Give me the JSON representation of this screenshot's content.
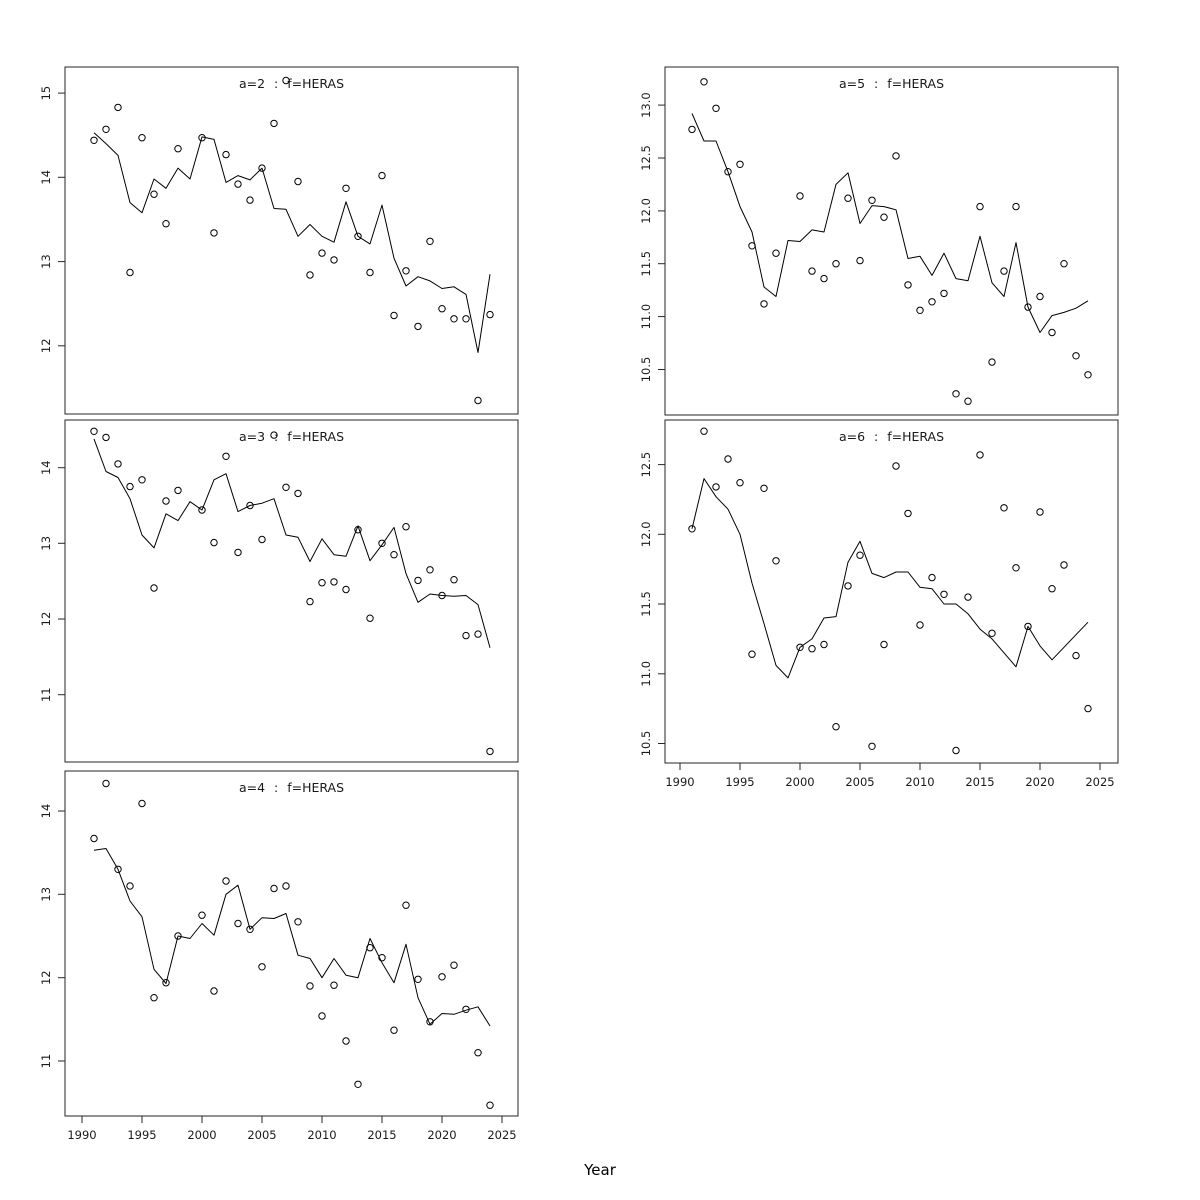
{
  "figure": {
    "xlabel": "Year",
    "background_color": "#ffffff",
    "title_color": "#7f7f7f",
    "data_color": "#000000",
    "axis_color": "#262626"
  },
  "chart_data": {
    "type": "scatter",
    "description": "5-panel lattice of survey index vs year: open-circle observations with fitted line",
    "x": [
      1991,
      1992,
      1993,
      1994,
      1995,
      1996,
      1997,
      1998,
      1999,
      2000,
      2001,
      2002,
      2003,
      2004,
      2005,
      2006,
      2007,
      2008,
      2009,
      2010,
      2011,
      2012,
      2013,
      2014,
      2015,
      2016,
      2017,
      2018,
      2019,
      2020,
      2021,
      2022,
      2023,
      2024
    ],
    "xticks": [
      1990,
      1995,
      2000,
      2005,
      2010,
      2015,
      2020,
      2025
    ],
    "xlabel": "Year",
    "legend": "none",
    "grid": false,
    "panels": [
      {
        "id": "a2",
        "title": "a=2 : f=HERAS",
        "yticks": [
          12,
          13,
          14,
          15
        ],
        "ytick_labels": [
          "12",
          "13",
          "14",
          "15"
        ],
        "ylim": [
          11.19,
          15.31
        ],
        "xlim": [
          1988.583,
          2026.333
        ],
        "show_x_axis": false,
        "scatter": [
          14.44,
          14.57,
          14.83,
          12.87,
          14.47,
          13.8,
          13.45,
          14.34,
          null,
          14.47,
          13.34,
          14.27,
          13.92,
          13.73,
          14.11,
          14.64,
          15.15,
          13.95,
          12.84,
          13.1,
          13.02,
          13.87,
          13.3,
          12.87,
          14.02,
          12.36,
          12.89,
          12.23,
          13.24,
          12.44,
          12.32,
          12.32,
          11.35,
          12.37
        ],
        "line": [
          14.53,
          14.4,
          14.26,
          13.7,
          13.58,
          13.98,
          13.87,
          14.11,
          13.98,
          14.48,
          14.45,
          13.94,
          14.02,
          13.97,
          14.11,
          13.63,
          13.62,
          13.3,
          13.44,
          13.3,
          13.23,
          13.71,
          13.3,
          13.21,
          13.67,
          13.04,
          12.71,
          12.82,
          12.77,
          12.68,
          12.7,
          12.61,
          11.92,
          12.85
        ]
      },
      {
        "id": "a3",
        "title": "a=3 : f=HERAS",
        "yticks": [
          11,
          12,
          13,
          14
        ],
        "ytick_labels": [
          "11",
          "12",
          "13",
          "14"
        ],
        "ylim": [
          10.11,
          14.63
        ],
        "xlim": [
          1988.583,
          2026.333
        ],
        "show_x_axis": false,
        "scatter": [
          14.48,
          14.4,
          14.05,
          13.75,
          13.84,
          12.41,
          13.56,
          13.7,
          null,
          13.44,
          13.01,
          14.15,
          12.88,
          13.5,
          13.05,
          14.43,
          13.74,
          13.66,
          12.23,
          12.48,
          12.49,
          12.39,
          13.18,
          12.01,
          13.0,
          12.85,
          13.22,
          12.51,
          12.65,
          12.31,
          12.52,
          11.78,
          11.8,
          10.25
        ],
        "line": [
          14.38,
          13.95,
          13.87,
          13.59,
          13.11,
          12.94,
          13.39,
          13.3,
          13.55,
          13.44,
          13.84,
          13.92,
          13.42,
          13.5,
          13.53,
          13.59,
          13.11,
          13.08,
          12.76,
          13.06,
          12.85,
          12.83,
          13.23,
          12.77,
          12.98,
          13.21,
          12.6,
          12.22,
          12.33,
          12.31,
          12.3,
          12.31,
          12.19,
          11.62
        ]
      },
      {
        "id": "a4",
        "title": "a=4 : f=HERAS",
        "yticks": [
          11,
          12,
          13,
          14
        ],
        "ytick_labels": [
          "11",
          "12",
          "13",
          "14"
        ],
        "ylim": [
          10.34,
          14.48
        ],
        "xlim": [
          1988.583,
          2026.333
        ],
        "show_x_axis": true,
        "scatter": [
          13.67,
          14.33,
          13.3,
          13.1,
          14.09,
          11.76,
          11.94,
          12.5,
          null,
          12.75,
          11.84,
          13.16,
          12.65,
          12.58,
          12.13,
          13.07,
          13.1,
          12.67,
          11.9,
          11.54,
          11.91,
          11.24,
          10.72,
          12.36,
          12.24,
          11.37,
          12.87,
          11.98,
          11.47,
          12.01,
          12.15,
          11.62,
          11.1,
          10.47
        ],
        "line": [
          13.53,
          13.55,
          13.3,
          12.92,
          12.73,
          12.1,
          11.93,
          12.5,
          12.47,
          12.65,
          12.51,
          13.0,
          13.11,
          12.58,
          12.72,
          12.71,
          12.77,
          12.27,
          12.23,
          12.0,
          12.23,
          12.03,
          12.0,
          12.47,
          12.18,
          11.94,
          12.4,
          11.76,
          11.44,
          11.57,
          11.56,
          11.61,
          11.65,
          11.42
        ]
      },
      {
        "id": "a5",
        "title": "a=5 : f=HERAS",
        "yticks": [
          10.5,
          11.0,
          11.5,
          12.0,
          12.5,
          13.0
        ],
        "ytick_labels": [
          "10.5",
          "11.0",
          "11.5",
          "12.0",
          "12.5",
          "13.0"
        ],
        "ylim": [
          10.07,
          13.36
        ],
        "xlim": [
          1988.75,
          2026.5
        ],
        "show_x_axis": false,
        "scatter": [
          12.77,
          13.22,
          12.97,
          12.37,
          12.44,
          11.67,
          11.12,
          11.6,
          null,
          12.14,
          11.43,
          11.36,
          11.5,
          12.12,
          11.53,
          12.1,
          11.94,
          12.52,
          11.3,
          11.06,
          11.14,
          11.22,
          10.27,
          10.2,
          12.04,
          10.57,
          11.43,
          12.04,
          11.09,
          11.19,
          10.85,
          11.5,
          10.63,
          10.45
        ],
        "line": [
          12.92,
          12.66,
          12.66,
          12.37,
          12.04,
          11.8,
          11.28,
          11.19,
          11.72,
          11.71,
          11.82,
          11.8,
          12.25,
          12.36,
          11.88,
          12.05,
          12.04,
          12.01,
          11.55,
          11.57,
          11.39,
          11.6,
          11.36,
          11.34,
          11.76,
          11.32,
          11.19,
          11.7,
          11.09,
          10.85,
          11.01,
          11.04,
          11.08,
          11.15
        ]
      },
      {
        "id": "a6",
        "title": "a=6 : f=HERAS",
        "yticks": [
          10.5,
          11.0,
          11.5,
          12.0,
          12.5
        ],
        "ytick_labels": [
          "10.5",
          "11.0",
          "11.5",
          "12.0",
          "12.5"
        ],
        "ylim": [
          10.36,
          12.82
        ],
        "xlim": [
          1988.75,
          2026.5
        ],
        "show_x_axis": true,
        "scatter": [
          12.04,
          12.74,
          12.34,
          12.54,
          12.37,
          11.14,
          12.33,
          11.81,
          null,
          11.19,
          11.18,
          11.21,
          10.62,
          11.63,
          11.85,
          10.48,
          11.21,
          12.49,
          12.15,
          11.35,
          11.69,
          11.57,
          10.45,
          11.55,
          12.57,
          11.29,
          12.19,
          11.76,
          11.34,
          12.16,
          11.61,
          11.78,
          11.13,
          10.75
        ],
        "line": [
          12.04,
          12.4,
          12.27,
          12.18,
          12.0,
          11.65,
          11.36,
          11.06,
          10.97,
          11.19,
          11.25,
          11.4,
          11.41,
          11.8,
          11.95,
          11.72,
          11.69,
          11.73,
          11.73,
          11.62,
          11.61,
          11.5,
          11.5,
          11.43,
          11.32,
          11.25,
          11.15,
          11.05,
          11.34,
          11.2,
          11.1,
          11.19,
          11.28,
          11.37
        ]
      }
    ]
  }
}
